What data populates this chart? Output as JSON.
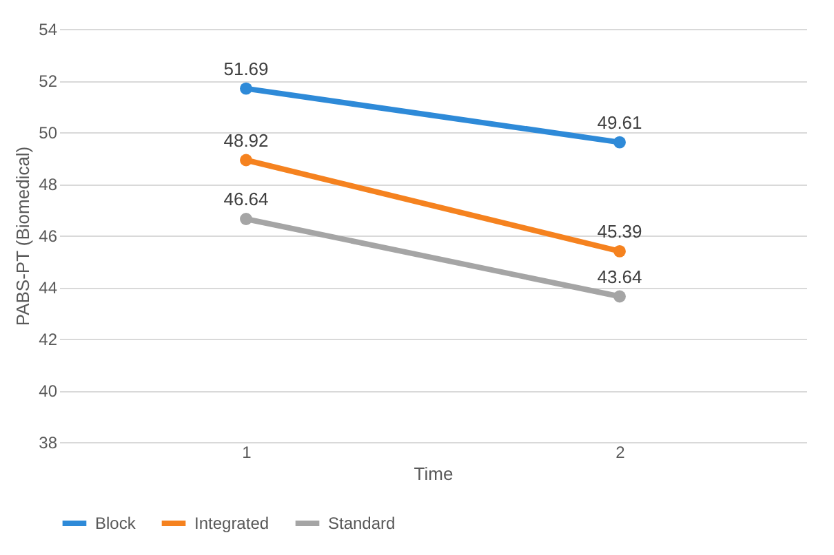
{
  "chart_data": {
    "type": "line",
    "xlabel": "Time",
    "ylabel": "PABS-PT (Biomedical)",
    "categories": [
      "1",
      "2"
    ],
    "series": [
      {
        "name": "Block",
        "color": "#2e8ad8",
        "values": [
          51.69,
          49.61
        ]
      },
      {
        "name": "Integrated",
        "color": "#f5821f",
        "values": [
          48.92,
          45.39
        ]
      },
      {
        "name": "Standard",
        "color": "#a5a5a5",
        "values": [
          46.64,
          43.64
        ]
      }
    ],
    "ylim": [
      38,
      54
    ],
    "yticks": [
      38,
      40,
      42,
      44,
      46,
      48,
      50,
      52,
      54
    ],
    "grid": "y",
    "legend": "bottom",
    "data_labels": true,
    "marker": "circle",
    "line_style": "solid"
  }
}
